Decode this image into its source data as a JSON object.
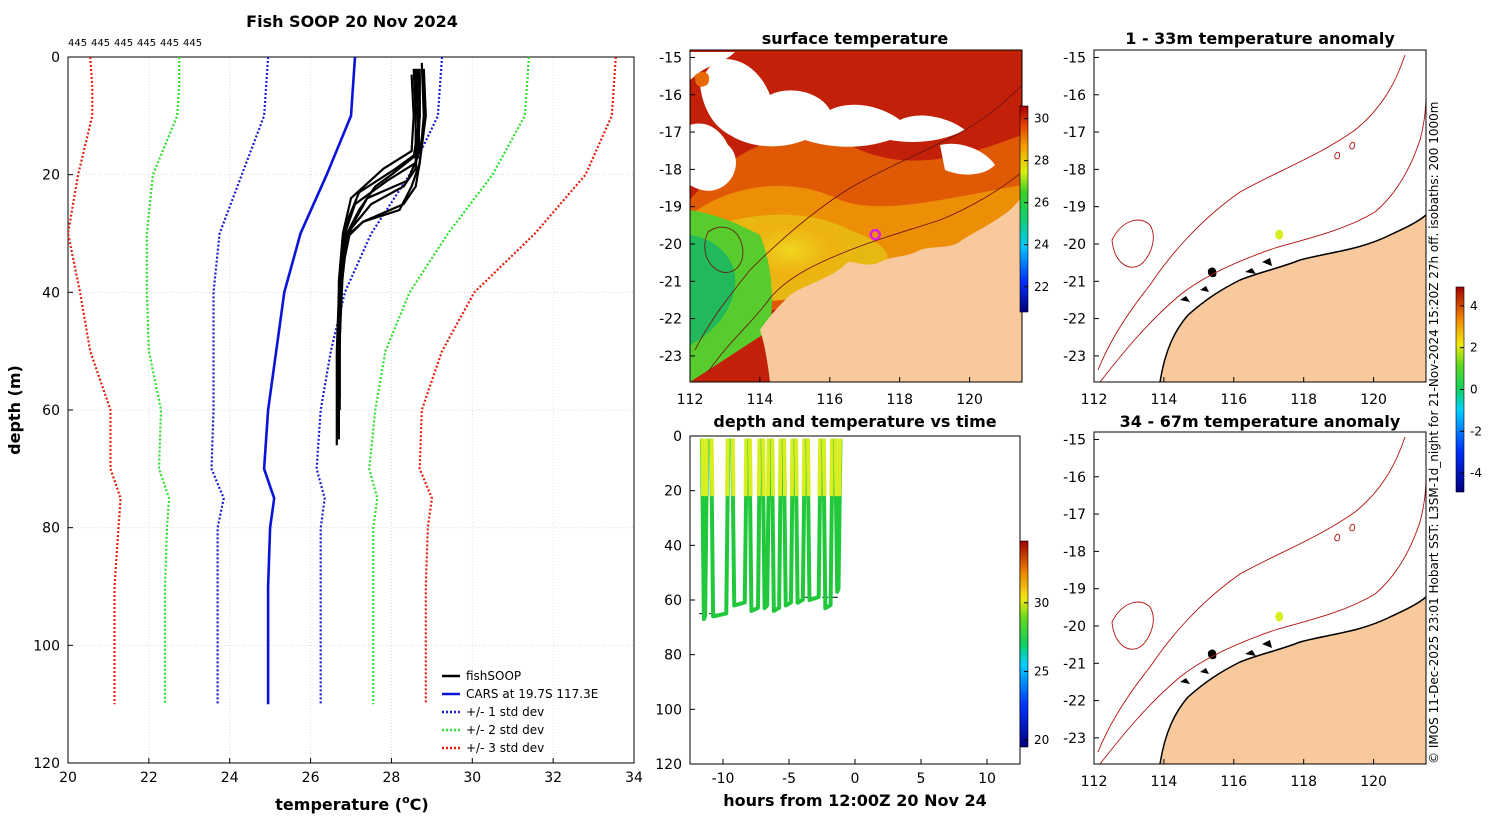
{
  "colors": {
    "fishsoop": "#000000",
    "cars": "#0a14d8",
    "std1": "#1a1ad0",
    "std2": "#2ee02e",
    "std3": "#e81e0c",
    "land": "#f8c99c",
    "grid": "#d4d4d4"
  },
  "footer": {
    "side_note": "© IMOS 11-Dec-2025 23:01 Hobart SST: L3SM-1d_night for 21-Nov-2024 15:20Z 27h off. isobaths: 200  1000m"
  },
  "chart_data": [
    {
      "id": "profile",
      "type": "line",
      "title": "Fish SOOP 20 Nov 2024",
      "xlabel": "temperature (",
      "xlabel_sup": "o",
      "xlabel_end": "C)",
      "ylabel": "depth (m)",
      "xlim": [
        20,
        34
      ],
      "ylim": [
        0,
        120
      ],
      "y_reversed": true,
      "xticks": [
        20,
        22,
        24,
        26,
        28,
        30,
        32,
        34
      ],
      "yticks": [
        0,
        20,
        40,
        60,
        80,
        100,
        120
      ],
      "top_labels": [
        "445",
        "445",
        "445",
        "445",
        "445",
        "445"
      ],
      "legend": [
        "fishSOOP",
        "CARS at 19.7S 117.3E",
        "+/- 1 std dev",
        "+/- 2 std dev",
        "+/- 3 std dev"
      ],
      "depths": [
        0,
        5,
        10,
        20,
        30,
        40,
        50,
        60,
        70,
        75,
        80,
        90,
        100,
        110
      ],
      "series": [
        {
          "name": "CARS at 19.7S 117.3E",
          "values": [
            27.1,
            27.05,
            27.0,
            26.4,
            25.75,
            25.35,
            25.15,
            24.95,
            24.85,
            25.1,
            25.0,
            24.95,
            24.95,
            24.95
          ]
        },
        {
          "name": "+1 std dev",
          "values": [
            29.25,
            29.2,
            29.15,
            28.45,
            27.5,
            26.85,
            26.5,
            26.25,
            26.15,
            26.35,
            26.25,
            26.25,
            26.25,
            26.25
          ]
        },
        {
          "name": "-1 std dev",
          "values": [
            24.95,
            24.9,
            24.85,
            24.3,
            23.75,
            23.6,
            23.6,
            23.6,
            23.55,
            23.85,
            23.7,
            23.7,
            23.7,
            23.7
          ]
        },
        {
          "name": "+2 std dev",
          "values": [
            31.4,
            31.35,
            31.3,
            30.5,
            29.4,
            28.45,
            27.85,
            27.6,
            27.45,
            27.65,
            27.55,
            27.55,
            27.55,
            27.55
          ]
        },
        {
          "name": "-2 std dev",
          "values": [
            22.75,
            22.75,
            22.7,
            22.1,
            21.95,
            21.95,
            22.0,
            22.3,
            22.25,
            22.5,
            22.45,
            22.4,
            22.4,
            22.4
          ]
        },
        {
          "name": "+3 std dev",
          "values": [
            33.55,
            33.5,
            33.45,
            32.8,
            31.55,
            30.05,
            29.25,
            28.75,
            28.7,
            29.0,
            28.9,
            28.85,
            28.85,
            28.85
          ]
        },
        {
          "name": "-3 std dev",
          "values": [
            20.55,
            20.6,
            20.6,
            20.25,
            20.0,
            20.3,
            20.55,
            21.05,
            21.05,
            21.3,
            21.25,
            21.15,
            21.15,
            21.15
          ]
        }
      ],
      "fishsoop_casts": [
        {
          "t": [
            28.6,
            28.65,
            28.7,
            28.1,
            27.2,
            26.9,
            26.8,
            26.7,
            26.65,
            26.65,
            26.65
          ],
          "z": [
            2,
            10,
            16,
            19,
            23,
            28,
            33,
            40,
            50,
            60,
            66
          ]
        },
        {
          "t": [
            28.7,
            28.7,
            28.65,
            28.4,
            27.4,
            27.0,
            26.85,
            26.75,
            26.7,
            26.7,
            26.7
          ],
          "z": [
            3,
            10,
            17,
            21,
            24,
            29,
            34,
            40,
            50,
            60,
            65
          ]
        },
        {
          "t": [
            28.55,
            28.6,
            28.6,
            27.9,
            27.1,
            26.85,
            26.75,
            26.7,
            26.7,
            26.7
          ],
          "z": [
            2,
            10,
            18,
            21,
            25,
            30,
            35,
            42,
            52,
            63
          ]
        },
        {
          "t": [
            28.75,
            28.8,
            28.7,
            28.6,
            28.3,
            27.3,
            26.8,
            26.75,
            26.7,
            26.7
          ],
          "z": [
            1,
            10,
            18,
            22,
            25,
            28,
            31,
            40,
            52,
            62
          ]
        },
        {
          "t": [
            28.65,
            28.7,
            28.55,
            28.0,
            27.6,
            27.2,
            26.9,
            26.75,
            26.72,
            26.72
          ],
          "z": [
            2,
            10,
            17,
            20,
            22,
            26,
            30,
            38,
            50,
            60
          ]
        },
        {
          "t": [
            28.8,
            28.85,
            28.7,
            28.5,
            28.2,
            27.3,
            26.85,
            26.75,
            26.7,
            26.7
          ],
          "z": [
            2,
            10,
            18,
            22,
            26,
            28,
            31,
            40,
            52,
            64
          ]
        },
        {
          "t": [
            28.5,
            28.55,
            28.5,
            27.8,
            27.0,
            26.8,
            26.7,
            26.68,
            26.68
          ],
          "z": [
            3,
            10,
            16,
            19,
            24,
            30,
            38,
            50,
            62
          ]
        },
        {
          "t": [
            28.7,
            28.7,
            28.6,
            28.3,
            27.5,
            26.9,
            26.8,
            26.72,
            26.72
          ],
          "z": [
            2,
            10,
            19,
            22,
            25,
            30,
            36,
            48,
            58
          ]
        }
      ]
    },
    {
      "id": "sst_map",
      "type": "heatmap",
      "title": "surface temperature",
      "xlim": [
        112,
        121.5
      ],
      "ylim": [
        -23.7,
        -14.8
      ],
      "xticks": [
        112,
        114,
        116,
        118,
        120
      ],
      "yticks": [
        -15,
        -16,
        -17,
        -18,
        -19,
        -20,
        -21,
        -22,
        -23
      ],
      "colorbar": {
        "ticks": [
          22,
          24,
          26,
          28,
          30
        ],
        "range": [
          20.8,
          30.6
        ]
      },
      "marker": {
        "lon": 117.3,
        "lat": -19.75
      }
    },
    {
      "id": "depth_time",
      "type": "scatter",
      "title": "depth and temperature vs time",
      "xlabel": "hours from 12:00Z 20 Nov 24",
      "xlim": [
        -12.5,
        12.5
      ],
      "ylim": [
        0,
        120
      ],
      "y_reversed": true,
      "xticks": [
        -10,
        -5,
        0,
        5,
        10
      ],
      "yticks": [
        0,
        20,
        40,
        60,
        80,
        100,
        120
      ],
      "colorbar": {
        "ticks": [
          20,
          25,
          30
        ],
        "range": [
          19.5,
          34.5
        ]
      },
      "bottom_line_depth": 65,
      "bottom_line_depth2": 59,
      "dives": [
        {
          "start": -11.6,
          "end": -11.2,
          "depth": 67
        },
        {
          "start": -10.9,
          "end": -9.6,
          "depth": 66
        },
        {
          "start": -9.3,
          "end": -8.2,
          "depth": 62
        },
        {
          "start": -8.0,
          "end": -7.2,
          "depth": 64
        },
        {
          "start": -7.0,
          "end": -6.5,
          "depth": 63
        },
        {
          "start": -6.3,
          "end": -5.6,
          "depth": 64
        },
        {
          "start": -5.4,
          "end": -4.7,
          "depth": 62
        },
        {
          "start": -4.5,
          "end": -3.8,
          "depth": 61
        },
        {
          "start": -3.6,
          "end": -2.6,
          "depth": 60
        },
        {
          "start": -2.4,
          "end": -1.7,
          "depth": 63
        },
        {
          "start": -1.5,
          "end": -1.1,
          "depth": 57
        }
      ]
    },
    {
      "id": "anom_upper",
      "type": "heatmap",
      "title": "1 - 33m temperature anomaly",
      "xlim": [
        112,
        121.5
      ],
      "ylim": [
        -23.7,
        -14.8
      ],
      "xticks": [
        112,
        114,
        116,
        118,
        120
      ],
      "yticks": [
        -15,
        -16,
        -17,
        -18,
        -19,
        -20,
        -21,
        -22,
        -23
      ],
      "colorbar": {
        "ticks": [
          4,
          2,
          0,
          -2,
          -4
        ],
        "range": [
          -4.9,
          4.9
        ]
      },
      "marker": {
        "lon": 117.3,
        "lat": -19.75,
        "anomaly": 2.0
      }
    },
    {
      "id": "anom_lower",
      "type": "heatmap",
      "title": "34 - 67m temperature anomaly",
      "xlim": [
        112,
        121.5
      ],
      "ylim": [
        -23.7,
        -14.8
      ],
      "xticks": [
        112,
        114,
        116,
        118,
        120
      ],
      "yticks": [
        -15,
        -16,
        -17,
        -18,
        -19,
        -20,
        -21,
        -22,
        -23
      ],
      "marker": {
        "lon": 117.3,
        "lat": -19.75,
        "anomaly": 2.0
      }
    }
  ]
}
